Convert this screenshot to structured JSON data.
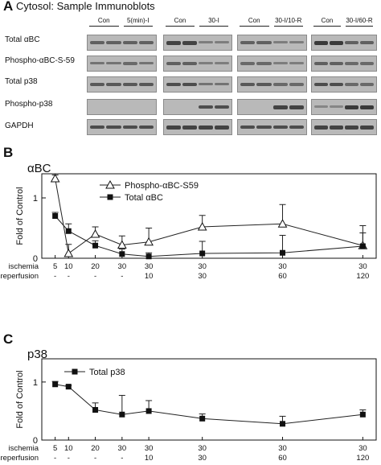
{
  "panelA": {
    "letter": "A",
    "title": "Cytosol: Sample Immunoblots",
    "groups": [
      {
        "left": "Con",
        "right": "5(min)-I"
      },
      {
        "left": "Con",
        "right": "30-I"
      },
      {
        "left": "Con",
        "right": "30-I/10-R"
      },
      {
        "left": "Con",
        "right": "30-I/60-R"
      }
    ],
    "rows": [
      "Total αBC",
      "Phospho-αBC-S-59",
      "Total p38",
      "Phospho-p38",
      "GAPDH"
    ],
    "blot_bands": [
      [
        [
          0.6,
          0.6,
          0.6,
          0.6
        ],
        [
          0.9,
          0.9,
          0.3,
          0.3
        ],
        [
          0.6,
          0.6,
          0.3,
          0.3
        ],
        [
          1.0,
          1.0,
          0.6,
          0.6
        ]
      ],
      [
        [
          0.4,
          0.4,
          0.5,
          0.4
        ],
        [
          0.6,
          0.6,
          0.3,
          0.3
        ],
        [
          0.5,
          0.5,
          0.3,
          0.3
        ],
        [
          0.6,
          0.6,
          0.5,
          0.5
        ]
      ],
      [
        [
          0.7,
          0.7,
          0.7,
          0.7
        ],
        [
          0.8,
          0.8,
          0.4,
          0.4
        ],
        [
          0.7,
          0.7,
          0.5,
          0.5
        ],
        [
          0.8,
          0.8,
          0.5,
          0.5
        ]
      ],
      [
        [
          0.0,
          0.0,
          0.0,
          0.0
        ],
        [
          0.0,
          0.0,
          0.8,
          0.8
        ],
        [
          0.0,
          0.0,
          0.9,
          0.9
        ],
        [
          0.2,
          0.2,
          1.0,
          1.0
        ]
      ],
      [
        [
          0.8,
          0.8,
          0.8,
          0.8
        ],
        [
          0.9,
          0.9,
          0.9,
          0.9
        ],
        [
          0.8,
          0.8,
          0.8,
          0.8
        ],
        [
          0.9,
          0.9,
          0.9,
          0.9
        ]
      ]
    ]
  },
  "panelB": {
    "letter": "B",
    "title": "αBC"
  },
  "panelC": {
    "letter": "C",
    "title": "p38"
  },
  "chart_data": [
    {
      "type": "line",
      "ylabel": "Fold of Control",
      "ylim": [
        0,
        1.4
      ],
      "yticks": [
        "0",
        "1"
      ],
      "x": [
        5,
        10,
        20,
        30,
        40,
        60,
        90,
        120
      ],
      "xlabels": {
        "ischemia": [
          "5",
          "10",
          "20",
          "30",
          "30",
          "30",
          "30",
          "30"
        ],
        "reperfusion": [
          "-",
          "-",
          "-",
          "-",
          "10",
          "30",
          "60",
          "120"
        ]
      },
      "row_labels": [
        "ischemia",
        "reperfusion"
      ],
      "legend_position": "top-left",
      "series": [
        {
          "name": "Phospho-αBC-S59",
          "marker": "open-triangle",
          "values": [
            1.32,
            0.08,
            0.4,
            0.22,
            0.27,
            0.52,
            0.57,
            0.21
          ],
          "err": [
            0.06,
            0.15,
            0.12,
            0.15,
            0.23,
            0.19,
            0.32,
            0.33
          ]
        },
        {
          "name": "Total αBC",
          "marker": "filled-square",
          "values": [
            0.7,
            0.45,
            0.21,
            0.07,
            0.03,
            0.08,
            0.09,
            0.2
          ],
          "err": [
            0.06,
            0.12,
            0.08,
            0.08,
            0.06,
            0.2,
            0.29,
            0.22
          ]
        }
      ]
    },
    {
      "type": "line",
      "ylabel": "Fold of Control",
      "ylim": [
        0,
        1.4
      ],
      "yticks": [
        "0",
        "1"
      ],
      "x": [
        5,
        10,
        20,
        30,
        40,
        60,
        90,
        120
      ],
      "xlabels": {
        "ischemia": [
          "5",
          "10",
          "20",
          "30",
          "30",
          "30",
          "30",
          "30"
        ],
        "reperfusion": [
          "-",
          "-",
          "-",
          "-",
          "10",
          "30",
          "60",
          "120"
        ]
      },
      "row_labels": [
        "ischemia",
        "reperfusion"
      ],
      "legend_position": "top-left",
      "series": [
        {
          "name": "Total p38",
          "marker": "filled-square",
          "values": [
            0.96,
            0.92,
            0.52,
            0.44,
            0.5,
            0.37,
            0.28,
            0.44
          ],
          "err": [
            0.05,
            0.02,
            0.12,
            0.33,
            0.18,
            0.08,
            0.13,
            0.08
          ]
        }
      ]
    }
  ]
}
